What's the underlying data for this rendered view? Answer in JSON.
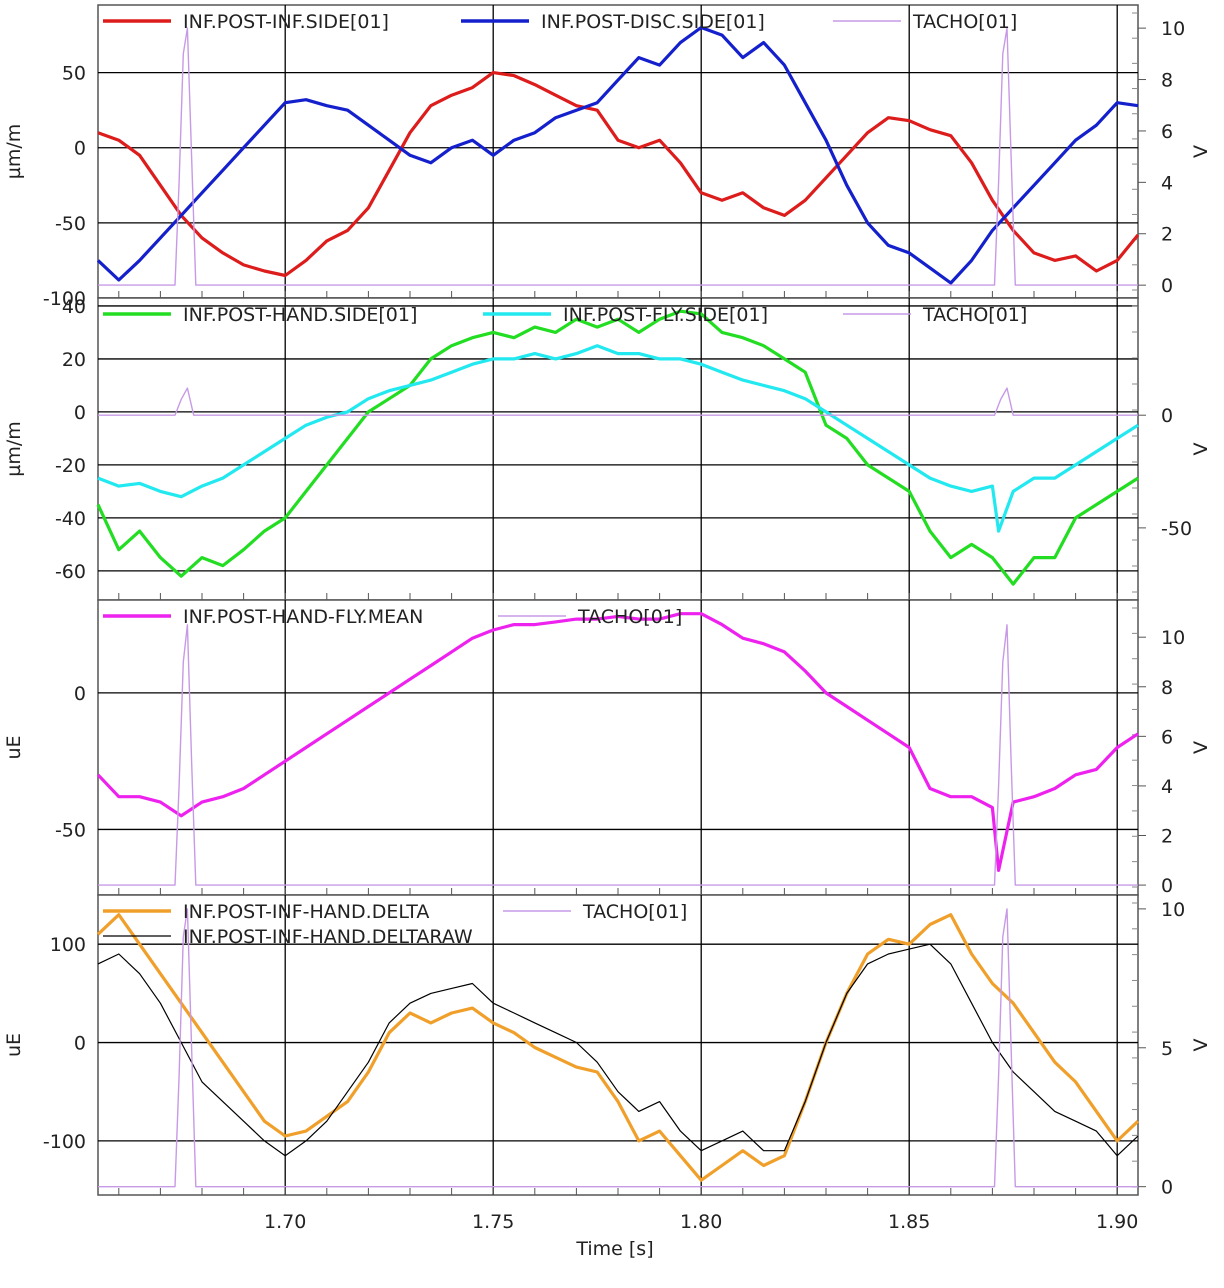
{
  "chart_data": [
    {
      "type": "line",
      "ylabel": "µm/m",
      "y2label": "V",
      "ylim": [
        -100,
        95
      ],
      "y2lim": [
        -0.5,
        10.9
      ],
      "yticks": [
        -100,
        -50,
        0,
        50
      ],
      "y2ticks": [
        0,
        2,
        4,
        6,
        8,
        10
      ],
      "xlim": [
        1.655,
        1.905
      ],
      "grid": true,
      "legend_position": "top",
      "series": [
        {
          "name": "INF.POST-INF.SIDE[01]",
          "axis": "left",
          "color": "#dd1c1c",
          "x": [
            1.655,
            1.66,
            1.665,
            1.67,
            1.675,
            1.68,
            1.685,
            1.69,
            1.695,
            1.7,
            1.705,
            1.71,
            1.715,
            1.72,
            1.725,
            1.73,
            1.735,
            1.74,
            1.745,
            1.75,
            1.755,
            1.76,
            1.765,
            1.77,
            1.775,
            1.78,
            1.785,
            1.79,
            1.795,
            1.8,
            1.805,
            1.81,
            1.815,
            1.82,
            1.825,
            1.83,
            1.835,
            1.84,
            1.845,
            1.85,
            1.855,
            1.86,
            1.865,
            1.87,
            1.875,
            1.88,
            1.885,
            1.89,
            1.895,
            1.9,
            1.905
          ],
          "y": [
            10,
            5,
            -5,
            -25,
            -45,
            -60,
            -70,
            -78,
            -82,
            -85,
            -75,
            -62,
            -55,
            -40,
            -15,
            10,
            28,
            35,
            40,
            50,
            48,
            42,
            35,
            28,
            25,
            5,
            0,
            5,
            -10,
            -30,
            -35,
            -30,
            -40,
            -45,
            -35,
            -20,
            -5,
            10,
            20,
            18,
            12,
            8,
            -10,
            -35,
            -55,
            -70,
            -75,
            -72,
            -82,
            -75,
            -58
          ]
        },
        {
          "name": "INF.POST-DISC.SIDE[01]",
          "axis": "left",
          "color": "#1420cc",
          "x": [
            1.655,
            1.66,
            1.665,
            1.67,
            1.675,
            1.68,
            1.685,
            1.69,
            1.695,
            1.7,
            1.705,
            1.71,
            1.715,
            1.72,
            1.725,
            1.73,
            1.735,
            1.74,
            1.745,
            1.75,
            1.755,
            1.76,
            1.765,
            1.77,
            1.775,
            1.78,
            1.785,
            1.79,
            1.795,
            1.8,
            1.805,
            1.81,
            1.815,
            1.82,
            1.825,
            1.83,
            1.835,
            1.84,
            1.845,
            1.85,
            1.855,
            1.86,
            1.865,
            1.87,
            1.875,
            1.88,
            1.885,
            1.89,
            1.895,
            1.9,
            1.905
          ],
          "y": [
            -75,
            -88,
            -75,
            -60,
            -45,
            -30,
            -15,
            0,
            15,
            30,
            32,
            28,
            25,
            15,
            5,
            -5,
            -10,
            0,
            5,
            -5,
            5,
            10,
            20,
            25,
            30,
            45,
            60,
            55,
            70,
            80,
            75,
            60,
            70,
            55,
            30,
            5,
            -25,
            -50,
            -65,
            -70,
            -80,
            -90,
            -75,
            -55,
            -40,
            -25,
            -10,
            5,
            15,
            30,
            28
          ]
        },
        {
          "name": "TACHO[01]",
          "axis": "right",
          "color": "#c79ae6",
          "x": [
            1.655,
            1.6735,
            1.6745,
            1.6755,
            1.6765,
            1.6775,
            1.6785,
            1.8705,
            1.8715,
            1.8725,
            1.8735,
            1.8745,
            1.8755,
            1.905
          ],
          "y": [
            0,
            0,
            4,
            9,
            10,
            5,
            0,
            0,
            4,
            9,
            10,
            5,
            0,
            0
          ]
        }
      ]
    },
    {
      "type": "line",
      "ylabel": "µm/m",
      "y2label": "V",
      "ylim": [
        -71,
        43
      ],
      "y2lim": [
        -82,
        52
      ],
      "yticks": [
        -60,
        -40,
        -20,
        0,
        20,
        40
      ],
      "y2ticks": [
        -50,
        0
      ],
      "xlim": [
        1.655,
        1.905
      ],
      "grid": true,
      "legend_position": "top",
      "series": [
        {
          "name": "INF.POST-HAND.SIDE[01]",
          "axis": "left",
          "color": "#22dd22",
          "x": [
            1.655,
            1.66,
            1.665,
            1.67,
            1.675,
            1.68,
            1.685,
            1.69,
            1.695,
            1.7,
            1.705,
            1.71,
            1.715,
            1.72,
            1.725,
            1.73,
            1.735,
            1.74,
            1.745,
            1.75,
            1.755,
            1.76,
            1.765,
            1.77,
            1.775,
            1.78,
            1.785,
            1.79,
            1.795,
            1.8,
            1.805,
            1.81,
            1.815,
            1.82,
            1.825,
            1.83,
            1.835,
            1.84,
            1.845,
            1.85,
            1.855,
            1.86,
            1.865,
            1.87,
            1.875,
            1.88,
            1.885,
            1.89,
            1.895,
            1.9,
            1.905
          ],
          "y": [
            -35,
            -52,
            -45,
            -55,
            -62,
            -55,
            -58,
            -52,
            -45,
            -40,
            -30,
            -20,
            -10,
            0,
            5,
            10,
            20,
            25,
            28,
            30,
            28,
            32,
            30,
            35,
            32,
            35,
            30,
            35,
            38,
            37,
            30,
            28,
            25,
            20,
            15,
            -5,
            -10,
            -20,
            -25,
            -30,
            -45,
            -55,
            -50,
            -55,
            -65,
            -55,
            -55,
            -40,
            -35,
            -30,
            -25
          ]
        },
        {
          "name": "INF.POST-FLY.SIDE[01]",
          "axis": "left",
          "color": "#22e8f0",
          "x": [
            1.655,
            1.66,
            1.665,
            1.67,
            1.675,
            1.68,
            1.685,
            1.69,
            1.695,
            1.7,
            1.705,
            1.71,
            1.715,
            1.72,
            1.725,
            1.73,
            1.735,
            1.74,
            1.745,
            1.75,
            1.755,
            1.76,
            1.765,
            1.77,
            1.775,
            1.78,
            1.785,
            1.79,
            1.795,
            1.8,
            1.805,
            1.81,
            1.815,
            1.82,
            1.825,
            1.83,
            1.835,
            1.84,
            1.845,
            1.85,
            1.855,
            1.86,
            1.865,
            1.87,
            1.8715,
            1.875,
            1.88,
            1.885,
            1.89,
            1.895,
            1.9,
            1.905
          ],
          "y": [
            -25,
            -28,
            -27,
            -30,
            -32,
            -28,
            -25,
            -20,
            -15,
            -10,
            -5,
            -2,
            0,
            5,
            8,
            10,
            12,
            15,
            18,
            20,
            20,
            22,
            20,
            22,
            25,
            22,
            22,
            20,
            20,
            18,
            15,
            12,
            10,
            8,
            5,
            0,
            -5,
            -10,
            -15,
            -20,
            -25,
            -28,
            -30,
            -28,
            -45,
            -30,
            -25,
            -25,
            -20,
            -15,
            -10,
            -5
          ]
        },
        {
          "name": "TACHO[01]",
          "axis": "right",
          "color": "#c79ae6",
          "x": [
            1.655,
            1.6735,
            1.675,
            1.6765,
            1.678,
            1.8705,
            1.872,
            1.8735,
            1.875,
            1.905
          ],
          "y": [
            0,
            0,
            7,
            12,
            0,
            0,
            7,
            12,
            0,
            0
          ]
        }
      ]
    },
    {
      "type": "line",
      "ylabel": "uE",
      "y2label": "V",
      "ylim": [
        -74,
        34
      ],
      "y2lim": [
        -0.4,
        11.5
      ],
      "yticks": [
        -50,
        0
      ],
      "y2ticks": [
        0,
        2,
        4,
        6,
        8,
        10
      ],
      "xlim": [
        1.655,
        1.905
      ],
      "grid": true,
      "legend_position": "top",
      "series": [
        {
          "name": "INF.POST-HAND-FLY.MEAN",
          "axis": "left",
          "color": "#ee22ee",
          "x": [
            1.655,
            1.66,
            1.665,
            1.67,
            1.675,
            1.68,
            1.685,
            1.69,
            1.695,
            1.7,
            1.705,
            1.71,
            1.715,
            1.72,
            1.725,
            1.73,
            1.735,
            1.74,
            1.745,
            1.75,
            1.755,
            1.76,
            1.765,
            1.77,
            1.775,
            1.78,
            1.785,
            1.79,
            1.795,
            1.8,
            1.805,
            1.81,
            1.815,
            1.82,
            1.825,
            1.83,
            1.835,
            1.84,
            1.845,
            1.85,
            1.855,
            1.86,
            1.865,
            1.87,
            1.8715,
            1.875,
            1.88,
            1.885,
            1.89,
            1.895,
            1.9,
            1.905
          ],
          "y": [
            -30,
            -38,
            -38,
            -40,
            -45,
            -40,
            -38,
            -35,
            -30,
            -25,
            -20,
            -15,
            -10,
            -5,
            0,
            5,
            10,
            15,
            20,
            23,
            25,
            25,
            26,
            27,
            27,
            28,
            27,
            27,
            29,
            29,
            25,
            20,
            18,
            15,
            8,
            0,
            -5,
            -10,
            -15,
            -20,
            -35,
            -38,
            -38,
            -42,
            -65,
            -40,
            -38,
            -35,
            -30,
            -28,
            -20,
            -15
          ]
        },
        {
          "name": "TACHO[01]",
          "axis": "right",
          "color": "#c79ae6",
          "x": [
            1.655,
            1.6735,
            1.6745,
            1.6755,
            1.6765,
            1.6775,
            1.6785,
            1.8705,
            1.8715,
            1.8725,
            1.8735,
            1.8745,
            1.8755,
            1.905
          ],
          "y": [
            0,
            0,
            4,
            9,
            10.5,
            5,
            0,
            0,
            4,
            9,
            10.5,
            5,
            0,
            0
          ]
        }
      ]
    },
    {
      "type": "line",
      "ylabel": "uE",
      "y2label": "V",
      "ylim": [
        -155,
        150
      ],
      "y2lim": [
        -0.3,
        10.5
      ],
      "yticks": [
        -100,
        0,
        100
      ],
      "y2ticks": [
        0,
        5,
        10
      ],
      "xlim": [
        1.655,
        1.905
      ],
      "grid": true,
      "legend_position": "top",
      "series": [
        {
          "name": "INF.POST-INF-HAND.DELTA",
          "axis": "left",
          "color": "#f0a02a",
          "x": [
            1.655,
            1.66,
            1.665,
            1.67,
            1.675,
            1.68,
            1.685,
            1.69,
            1.695,
            1.7,
            1.705,
            1.71,
            1.715,
            1.72,
            1.725,
            1.73,
            1.735,
            1.74,
            1.745,
            1.75,
            1.755,
            1.76,
            1.765,
            1.77,
            1.775,
            1.78,
            1.785,
            1.79,
            1.795,
            1.8,
            1.805,
            1.81,
            1.815,
            1.82,
            1.825,
            1.83,
            1.835,
            1.84,
            1.845,
            1.85,
            1.855,
            1.86,
            1.865,
            1.87,
            1.875,
            1.88,
            1.885,
            1.89,
            1.895,
            1.9,
            1.905
          ],
          "y": [
            110,
            130,
            100,
            70,
            40,
            10,
            -20,
            -50,
            -80,
            -95,
            -90,
            -75,
            -60,
            -30,
            10,
            30,
            20,
            30,
            35,
            20,
            10,
            -5,
            -15,
            -25,
            -30,
            -60,
            -100,
            -90,
            -115,
            -140,
            -125,
            -110,
            -125,
            -115,
            -60,
            0,
            50,
            90,
            105,
            100,
            120,
            130,
            90,
            60,
            40,
            10,
            -20,
            -40,
            -70,
            -100,
            -80
          ]
        },
        {
          "name": "INF.POST-INF-HAND.DELTARAW",
          "axis": "left",
          "color": "#000000",
          "x": [
            1.655,
            1.66,
            1.665,
            1.67,
            1.675,
            1.68,
            1.685,
            1.69,
            1.695,
            1.7,
            1.705,
            1.71,
            1.715,
            1.72,
            1.725,
            1.73,
            1.735,
            1.74,
            1.745,
            1.75,
            1.755,
            1.76,
            1.765,
            1.77,
            1.775,
            1.78,
            1.785,
            1.79,
            1.795,
            1.8,
            1.805,
            1.81,
            1.815,
            1.82,
            1.825,
            1.83,
            1.835,
            1.84,
            1.845,
            1.85,
            1.855,
            1.86,
            1.865,
            1.87,
            1.875,
            1.88,
            1.885,
            1.89,
            1.895,
            1.9,
            1.905
          ],
          "y": [
            80,
            90,
            70,
            40,
            0,
            -40,
            -60,
            -80,
            -100,
            -115,
            -100,
            -80,
            -50,
            -20,
            20,
            40,
            50,
            55,
            60,
            40,
            30,
            20,
            10,
            0,
            -20,
            -50,
            -70,
            -60,
            -90,
            -110,
            -100,
            -90,
            -110,
            -110,
            -60,
            0,
            50,
            80,
            90,
            95,
            100,
            80,
            40,
            0,
            -30,
            -50,
            -70,
            -80,
            -90,
            -115,
            -95
          ]
        },
        {
          "name": "TACHO[01]",
          "axis": "right",
          "color": "#c79ae6",
          "x": [
            1.655,
            1.6735,
            1.6745,
            1.6755,
            1.6765,
            1.6775,
            1.6785,
            1.8705,
            1.8715,
            1.8725,
            1.8735,
            1.8745,
            1.8755,
            1.905
          ],
          "y": [
            0,
            0,
            4,
            9,
            10,
            5,
            0,
            0,
            4,
            9,
            10,
            5,
            0,
            0
          ]
        }
      ]
    }
  ],
  "x_axis": {
    "label": "Time  [s]",
    "ticks": [
      1.7,
      1.75,
      1.8,
      1.85,
      1.9
    ],
    "tick_labels": [
      "1.70",
      "1.75",
      "1.80",
      "1.85",
      "1.90"
    ]
  }
}
